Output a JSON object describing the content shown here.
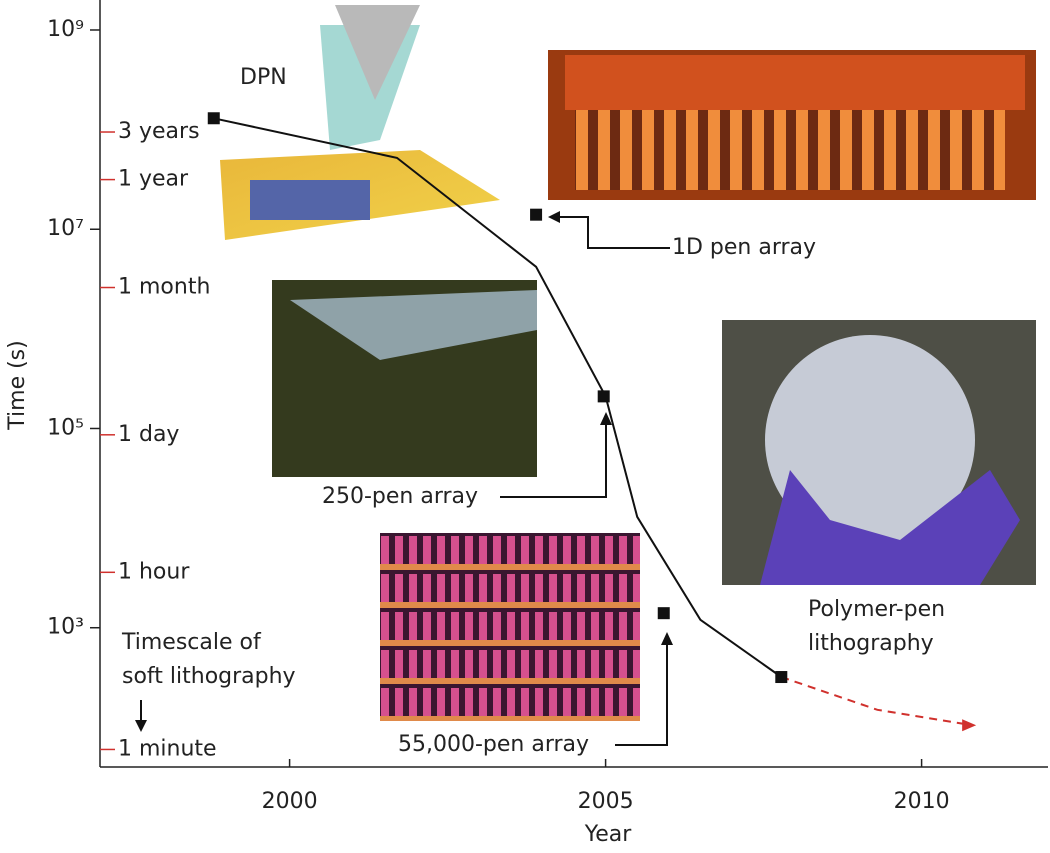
{
  "chart_data": {
    "type": "scatter",
    "x_label": "Year",
    "y_label": "Time (s)",
    "log_y": true,
    "xlim": [
      1997,
      2012
    ],
    "xticks": [
      2000,
      2005,
      2010
    ],
    "ylim": [
      40,
      2000000000
    ],
    "yticks": [
      {
        "value": 1000000000,
        "label": "10⁹"
      },
      {
        "value": 10000000,
        "label": "10⁷"
      },
      {
        "value": 100000,
        "label": "10⁵"
      },
      {
        "value": 1000,
        "label": "10³"
      }
    ],
    "time_ticks": [
      {
        "value": 94600000,
        "label": "3 years"
      },
      {
        "value": 31500000,
        "label": "1 year"
      },
      {
        "value": 2600000,
        "label": "1 month"
      },
      {
        "value": 86400,
        "label": "1 day"
      },
      {
        "value": 3600,
        "label": "1 hour"
      },
      {
        "value": 60,
        "label": "1 minute"
      }
    ],
    "time_tick_color": "#d0312d",
    "points": {
      "color": "#111",
      "x": [
        1998.8,
        2003.9,
        2004.97,
        2005.92,
        2007.78
      ],
      "values": [
        130000000,
        14000000,
        210000,
        1400,
        320
      ]
    },
    "curve": {
      "color": "#111",
      "x": [
        1998.8,
        2001.7,
        2003.9,
        2005,
        2005.5,
        2006.5,
        2007.78
      ],
      "values": [
        130000000,
        52000000,
        4200000,
        210000,
        13000,
        1200,
        320
      ]
    },
    "projection": {
      "color": "#d0312d",
      "x": [
        2007.78,
        2009.3,
        2010.8
      ],
      "values": [
        320,
        150,
        105
      ]
    },
    "labels": {
      "dpn": "DPN",
      "pen1d": "1D pen array",
      "pen250": "250-pen array",
      "pen55000": "55,000-pen array",
      "polymer": [
        "Polymer-pen",
        "lithography"
      ],
      "timescale": [
        "Timescale of",
        "soft lithography"
      ]
    }
  }
}
